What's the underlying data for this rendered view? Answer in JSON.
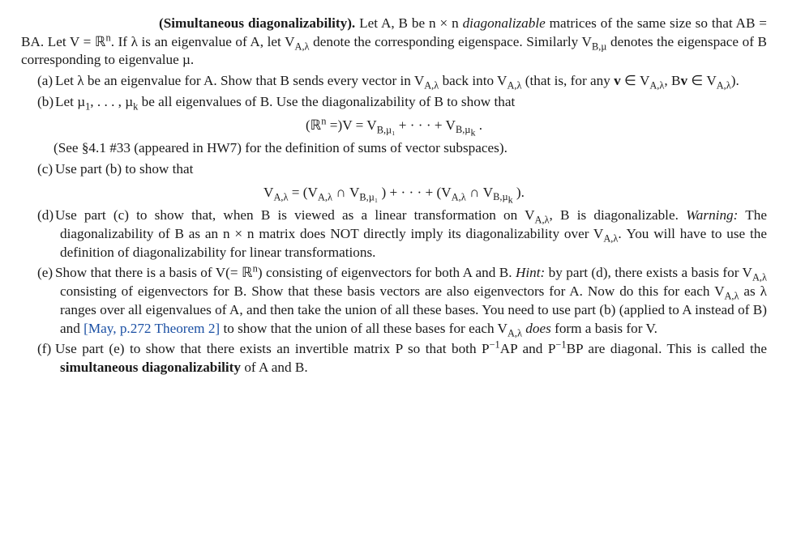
{
  "title_bold": "(Simultaneous diagonalizability).",
  "intro_1": " Let A, B be n × n ",
  "intro_diag": "diagonalizable",
  "intro_2": " matrices of the same size so that AB = BA. Let V = ℝ",
  "intro_sup_n": "n",
  "intro_3": ". If λ is an eigenvalue of A, let V",
  "intro_sub1": "A,λ",
  "intro_4": " denote the corresponding eigenspace. Similarly V",
  "intro_sub2": "B,µ",
  "intro_5": " denotes the eigenspace of B corresponding to eigenvalue µ.",
  "a_marker": "(a)",
  "a_1": "Let λ be an eigenvalue for A. Show that B sends every vector in V",
  "a_sub1": "A,λ",
  "a_2": " back into V",
  "a_sub2": "A,λ",
  "a_3": " (that is, for any ",
  "a_bf_v": "v",
  "a_4": " ∈ V",
  "a_sub3": "A,λ",
  "a_5": ", B",
  "a_bf_v2": "v",
  "a_6": " ∈ V",
  "a_sub4": "A,λ",
  "a_7": ").",
  "b_marker": "(b)",
  "b_1": "Let µ",
  "b_sub1": "1",
  "b_2": ", . . . , µ",
  "b_sub2": "k",
  "b_3": " be all eigenvalues of B. Use the diagonalizability of B to show that",
  "b_eq_1": "(ℝ",
  "b_eq_sup": "n",
  "b_eq_2": " =)V = V",
  "b_eq_sub1": "B,µ₁",
  "b_eq_3": " + · · · + V",
  "b_eq_sub2": "B,µ",
  "b_eq_subk": "k",
  "b_eq_4": " .",
  "b_note": "(See §4.1 #33 (appeared in HW7) for the definition of sums of vector subspaces).",
  "c_marker": "(c)",
  "c_1": "Use part (b) to show that",
  "c_eq_1": "V",
  "c_eq_sub1": "A,λ",
  "c_eq_2": " = (V",
  "c_eq_sub2": "A,λ",
  "c_eq_3": " ∩ V",
  "c_eq_sub3": "B,µ₁",
  "c_eq_4": " ) + · · · + (V",
  "c_eq_sub4": "A,λ",
  "c_eq_5": " ∩ V",
  "c_eq_sub5": "B,µ",
  "c_eq_subk": "k",
  "c_eq_6": " ).",
  "d_marker": "(d)",
  "d_1": "Use part (c) to show that, when B is viewed as a linear transformation on V",
  "d_sub1": "A,λ",
  "d_2": ", B is diagonalizable. ",
  "d_warn": "Warning:",
  "d_3": " The diagonalizability of B as an n × n matrix does NOT directly imply its diagonalizability over V",
  "d_sub2": "A,λ",
  "d_4": ". You will have to use the definition of diagonalizability for linear transformations.",
  "e_marker": "(e)",
  "e_1": "Show that there is a basis of V(= ℝ",
  "e_sup": "n",
  "e_2": ") consisting of eigenvectors for both A and B. ",
  "e_hint": "Hint:",
  "e_3": " by part (d), there exists a basis for V",
  "e_sub1": "A,λ",
  "e_4": " consisting of eigenvectors for B. Show that these basis vectors are also eigenvectors for A. Now do this for each V",
  "e_sub2": "A,λ",
  "e_5": " as λ ranges over all eigenvalues of A, and then take the union of all these bases. You need to use part (b) (applied to A instead of B) and ",
  "e_ref": "[May, p.272 Theorem 2]",
  "e_6": " to show that the union of all these bases for each V",
  "e_sub3": "A,λ",
  "e_7": " ",
  "e_does": "does",
  "e_8": " form a basis for V.",
  "f_marker": "(f)",
  "f_1": "Use part (e) to show that there exists an invertible matrix P so that both P",
  "f_sup1": "−1",
  "f_2": "AP and P",
  "f_sup2": "−1",
  "f_3": "BP are diagonal. This is called the ",
  "f_bold": "simultaneous diagonalizability",
  "f_4": " of A and B."
}
